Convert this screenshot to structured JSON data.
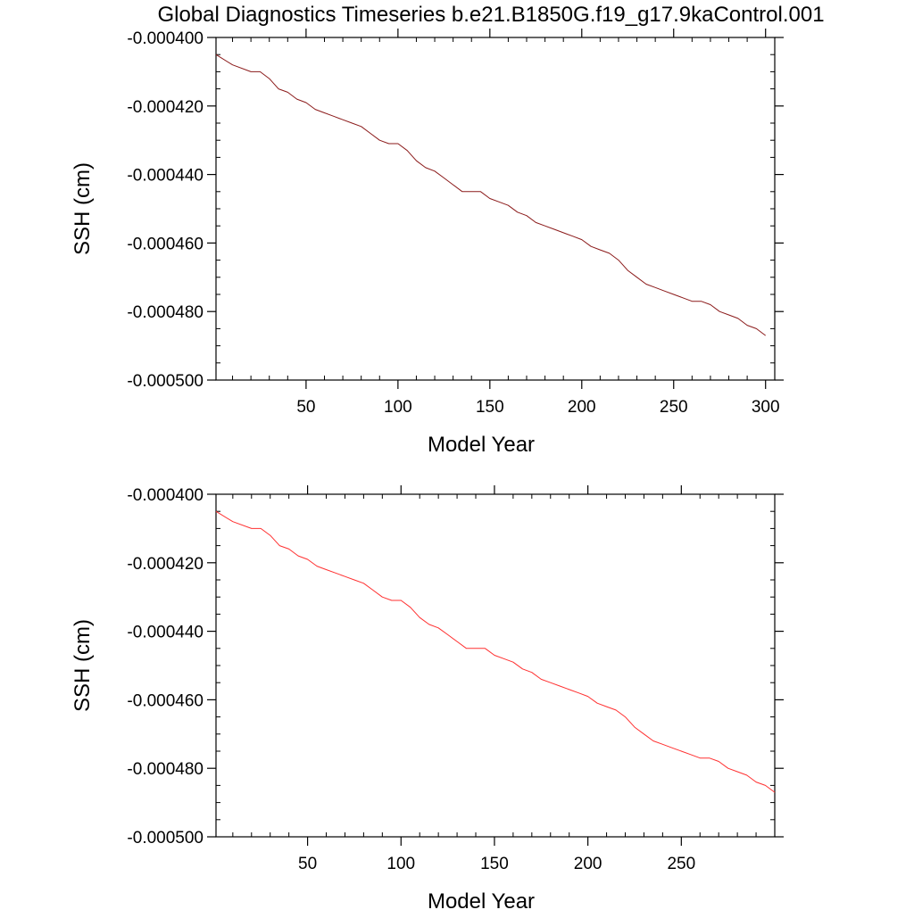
{
  "title": "Global Diagnostics Timeseries b.e21.B1850G.f19_g17.9kaControl.001",
  "chart_data": [
    {
      "type": "line",
      "xlabel": "Model Year",
      "ylabel": "SSH (cm)",
      "xlim": [
        1,
        305
      ],
      "ylim": [
        -0.0005,
        -0.0004
      ],
      "xticks": [
        50,
        100,
        150,
        200,
        250,
        300
      ],
      "xtick_labels": [
        "50",
        "100",
        "150",
        "200",
        "250",
        "300"
      ],
      "yticks": [
        -0.0004,
        -0.00042,
        -0.00044,
        -0.00046,
        -0.00048,
        -0.0005
      ],
      "ytick_labels": [
        "-0.000400",
        "-0.000420",
        "-0.000440",
        "-0.000460",
        "-0.000480",
        "-0.000500"
      ],
      "grid": false,
      "series": [
        {
          "color": "#8b1a1a",
          "x": [
            1,
            10,
            20,
            25,
            30,
            35,
            40,
            45,
            50,
            55,
            60,
            65,
            70,
            75,
            80,
            85,
            90,
            95,
            100,
            105,
            110,
            115,
            120,
            125,
            130,
            135,
            140,
            145,
            150,
            155,
            160,
            165,
            170,
            175,
            180,
            185,
            190,
            195,
            200,
            205,
            210,
            215,
            220,
            225,
            230,
            235,
            240,
            245,
            250,
            255,
            260,
            265,
            270,
            275,
            280,
            285,
            290,
            295,
            300
          ],
          "y": [
            -0.000405,
            -0.000408,
            -0.00041,
            -0.00041,
            -0.000412,
            -0.000415,
            -0.000416,
            -0.000418,
            -0.000419,
            -0.000421,
            -0.000422,
            -0.000423,
            -0.000424,
            -0.000425,
            -0.000426,
            -0.000428,
            -0.00043,
            -0.000431,
            -0.000431,
            -0.000433,
            -0.000436,
            -0.000438,
            -0.000439,
            -0.000441,
            -0.000443,
            -0.000445,
            -0.000445,
            -0.000445,
            -0.000447,
            -0.000448,
            -0.000449,
            -0.000451,
            -0.000452,
            -0.000454,
            -0.000455,
            -0.000456,
            -0.000457,
            -0.000458,
            -0.000459,
            -0.000461,
            -0.000462,
            -0.000463,
            -0.000465,
            -0.000468,
            -0.00047,
            -0.000472,
            -0.000473,
            -0.000474,
            -0.000475,
            -0.000476,
            -0.000477,
            -0.000477,
            -0.000478,
            -0.00048,
            -0.000481,
            -0.000482,
            -0.000484,
            -0.000485,
            -0.000487
          ]
        }
      ]
    },
    {
      "type": "line",
      "xlabel": "Model Year",
      "ylabel": "SSH (cm)",
      "xlim": [
        1,
        300
      ],
      "ylim": [
        -0.0005,
        -0.0004
      ],
      "xticks": [
        50,
        100,
        150,
        200,
        250
      ],
      "xtick_labels": [
        "50",
        "100",
        "150",
        "200",
        "250"
      ],
      "yticks": [
        -0.0004,
        -0.00042,
        -0.00044,
        -0.00046,
        -0.00048,
        -0.0005
      ],
      "ytick_labels": [
        "-0.000400",
        "-0.000420",
        "-0.000440",
        "-0.000460",
        "-0.000480",
        "-0.000500"
      ],
      "grid": false,
      "series": [
        {
          "color": "#ff3030",
          "x": [
            1,
            10,
            20,
            25,
            30,
            35,
            40,
            45,
            50,
            55,
            60,
            65,
            70,
            75,
            80,
            85,
            90,
            95,
            100,
            105,
            110,
            115,
            120,
            125,
            130,
            135,
            140,
            145,
            150,
            155,
            160,
            165,
            170,
            175,
            180,
            185,
            190,
            195,
            200,
            205,
            210,
            215,
            220,
            225,
            230,
            235,
            240,
            245,
            250,
            255,
            260,
            265,
            270,
            275,
            280,
            285,
            290,
            295,
            300
          ],
          "y": [
            -0.000405,
            -0.000408,
            -0.00041,
            -0.00041,
            -0.000412,
            -0.000415,
            -0.000416,
            -0.000418,
            -0.000419,
            -0.000421,
            -0.000422,
            -0.000423,
            -0.000424,
            -0.000425,
            -0.000426,
            -0.000428,
            -0.00043,
            -0.000431,
            -0.000431,
            -0.000433,
            -0.000436,
            -0.000438,
            -0.000439,
            -0.000441,
            -0.000443,
            -0.000445,
            -0.000445,
            -0.000445,
            -0.000447,
            -0.000448,
            -0.000449,
            -0.000451,
            -0.000452,
            -0.000454,
            -0.000455,
            -0.000456,
            -0.000457,
            -0.000458,
            -0.000459,
            -0.000461,
            -0.000462,
            -0.000463,
            -0.000465,
            -0.000468,
            -0.00047,
            -0.000472,
            -0.000473,
            -0.000474,
            -0.000475,
            -0.000476,
            -0.000477,
            -0.000477,
            -0.000478,
            -0.00048,
            -0.000481,
            -0.000482,
            -0.000484,
            -0.000485,
            -0.000487
          ]
        }
      ]
    }
  ]
}
